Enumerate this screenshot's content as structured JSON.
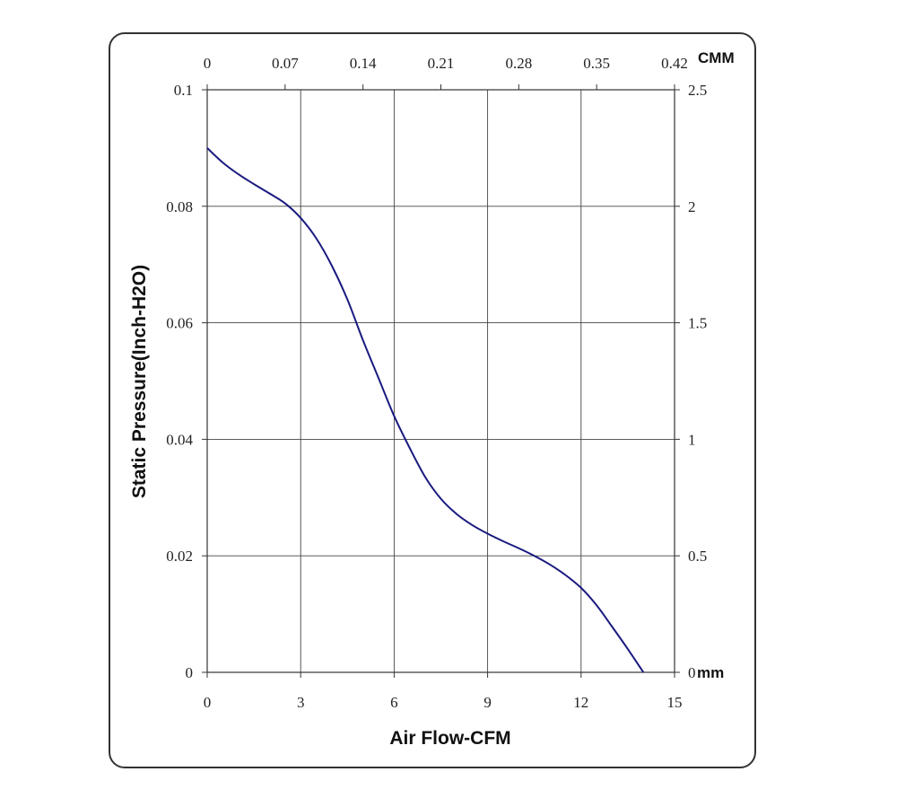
{
  "chart_data": {
    "type": "line",
    "xlabel": "Air Flow-CFM",
    "ylabel": "Static Pressure(Inch-H2O)",
    "x_ticks": [
      "0",
      "3",
      "6",
      "9",
      "12",
      "15"
    ],
    "y_ticks": [
      "0",
      "0.02",
      "0.04",
      "0.06",
      "0.08",
      "0.1"
    ],
    "top_ticks": [
      "0",
      "0.07",
      "0.14",
      "0.21",
      "0.28",
      "0.35",
      "0.42"
    ],
    "top_unit": "CMM",
    "right_ticks": [
      "0",
      "0.5",
      "1",
      "1.5",
      "2",
      "2.5"
    ],
    "right_unit": "mm",
    "xlim": [
      0,
      15
    ],
    "ylim": [
      0,
      0.1
    ],
    "top_lim": [
      0,
      0.42
    ],
    "right_lim": [
      0,
      2.5
    ],
    "grid": true,
    "series": [
      {
        "color": "#1a1a80",
        "x": [
          0,
          0.5,
          1,
          1.5,
          2,
          2.5,
          3,
          3.5,
          4,
          4.5,
          5,
          5.5,
          6,
          6.5,
          7,
          7.5,
          8,
          8.5,
          9,
          9.5,
          10,
          10.5,
          11,
          11.5,
          12,
          12.5,
          13,
          13.5,
          14
        ],
        "y": [
          0.09,
          0.0875,
          0.0855,
          0.0838,
          0.0822,
          0.0805,
          0.078,
          0.0745,
          0.0698,
          0.064,
          0.057,
          0.0505,
          0.044,
          0.0385,
          0.0335,
          0.0298,
          0.0272,
          0.0253,
          0.0238,
          0.0225,
          0.0213,
          0.02,
          0.0185,
          0.0167,
          0.0145,
          0.0115,
          0.0078,
          0.004,
          0.0
        ]
      }
    ]
  }
}
